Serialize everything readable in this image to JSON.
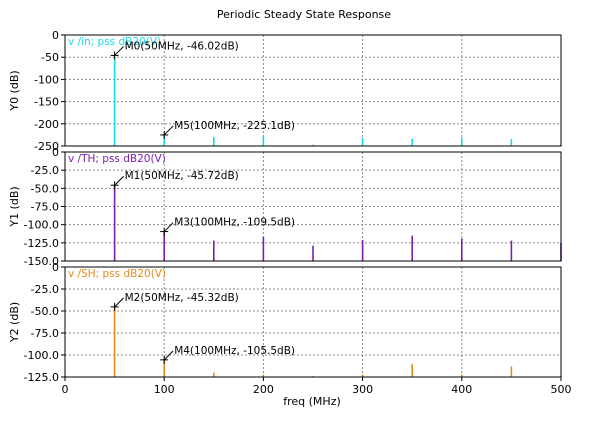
{
  "chart_data": {
    "title": "Periodic Steady State Response",
    "xlabel": "freq (MHz)",
    "xlim": [
      0,
      500
    ],
    "xticks": [
      "0",
      "100",
      "200",
      "300",
      "400",
      "500"
    ],
    "grid": true,
    "panels": [
      {
        "type": "bar",
        "ylabel": "Y0 (dB)",
        "ylim": [
          -250,
          0
        ],
        "yticks": [
          "0",
          "-50",
          "-100",
          "-150",
          "-200",
          "-250"
        ],
        "legend": "v /in; pss dB20(V)",
        "color": "#1dd6ea",
        "x": [
          50,
          100,
          150,
          200,
          250,
          300,
          350,
          400,
          450,
          500
        ],
        "values": [
          -46.02,
          -225.1,
          -230,
          -229,
          -247,
          -232,
          -234,
          -231,
          -234,
          -247
        ],
        "markers": [
          {
            "id": "M0",
            "x": 50,
            "y": -46.02,
            "label": "M0(50MHz, -46.02dB)"
          },
          {
            "id": "M5",
            "x": 100,
            "y": -225.1,
            "label": "M5(100MHz, -225.1dB)"
          }
        ]
      },
      {
        "type": "bar",
        "ylabel": "Y1 (dB)",
        "ylim": [
          -150,
          0
        ],
        "yticks": [
          "0",
          "-25.0",
          "-50.0",
          "-75.0",
          "-100.0",
          "-125.0",
          "-150.0"
        ],
        "legend": "v /TH; pss dB20(V)",
        "color": "#7a1fb0",
        "x": [
          50,
          100,
          150,
          200,
          250,
          300,
          350,
          400,
          450,
          500
        ],
        "values": [
          -45.72,
          -109.5,
          -122,
          -117,
          -129,
          -121,
          -115,
          -119,
          -122,
          -125
        ],
        "markers": [
          {
            "id": "M1",
            "x": 50,
            "y": -45.72,
            "label": "M1(50MHz, -45.72dB)"
          },
          {
            "id": "M3",
            "x": 100,
            "y": -109.5,
            "label": "M3(100MHz, -109.5dB)"
          }
        ]
      },
      {
        "type": "bar",
        "ylabel": "Y2 (dB)",
        "ylim": [
          -125,
          0
        ],
        "yticks": [
          "0",
          "-25.0",
          "-50.0",
          "-75.0",
          "-100.0",
          "-125.0"
        ],
        "legend": "v /SH; pss dB20(V)",
        "color": "#e58a1d",
        "x": [
          50,
          100,
          150,
          200,
          250,
          300,
          350,
          400,
          450,
          500
        ],
        "values": [
          -45.32,
          -105.5,
          -120,
          -122,
          -124,
          -122,
          -110,
          -122,
          -113,
          -124
        ],
        "markers": [
          {
            "id": "M2",
            "x": 50,
            "y": -45.32,
            "label": "M2(50MHz, -45.32dB)"
          },
          {
            "id": "M4",
            "x": 100,
            "y": -105.5,
            "label": "M4(100MHz, -105.5dB)"
          }
        ]
      }
    ]
  }
}
